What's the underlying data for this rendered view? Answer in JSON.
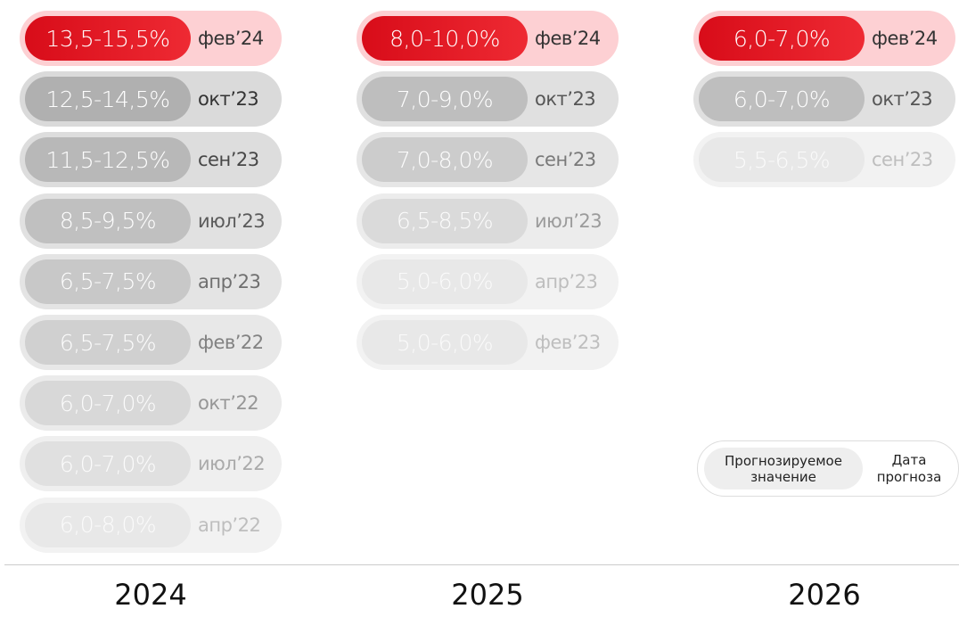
{
  "columns": [
    {
      "year": "2024",
      "items": [
        {
          "range": "13,5-15,5%",
          "date": "фев’24"
        },
        {
          "range": "12,5-14,5%",
          "date": "окт’23"
        },
        {
          "range": "11,5-12,5%",
          "date": "сен’23"
        },
        {
          "range": "8,5-9,5%",
          "date": "июл’23"
        },
        {
          "range": "6,5-7,5%",
          "date": "апр’23"
        },
        {
          "range": "6,5-7,5%",
          "date": "фев’22"
        },
        {
          "range": "6,0-7,0%",
          "date": "окт’22"
        },
        {
          "range": "6,0-7,0%",
          "date": "июл’22"
        },
        {
          "range": "6,0-8,0%",
          "date": "апр’22"
        }
      ]
    },
    {
      "year": "2025",
      "items": [
        {
          "range": "8,0-10,0%",
          "date": "фев’24"
        },
        {
          "range": "7,0-9,0%",
          "date": "окт’23"
        },
        {
          "range": "7,0-8,0%",
          "date": "сен’23"
        },
        {
          "range": "6,5-8,5%",
          "date": "июл’23"
        },
        {
          "range": "5,0-6,0%",
          "date": "апр’23"
        },
        {
          "range": "5,0-6,0%",
          "date": "фев’23"
        }
      ]
    },
    {
      "year": "2026",
      "items": [
        {
          "range": "6,0-7,0%",
          "date": "фев’24"
        },
        {
          "range": "6,0-7,0%",
          "date": "окт’23"
        },
        {
          "range": "5,5-6,5%",
          "date": "сен’23"
        }
      ]
    }
  ],
  "legend": {
    "value": "Прогнозируемое значение",
    "date": "Дата прогноза"
  }
}
